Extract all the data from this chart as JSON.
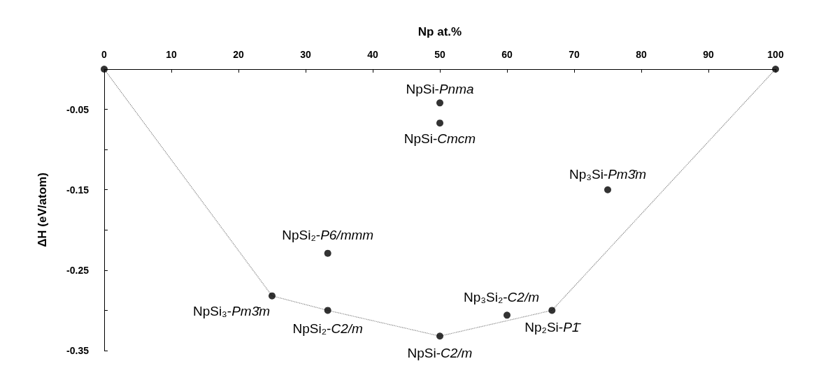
{
  "chart_data": {
    "type": "scatter",
    "xlabel": "Np at.%",
    "ylabel": "ΔH (eV/atom)",
    "xlim": [
      0,
      100
    ],
    "xticks": [
      0,
      10,
      20,
      30,
      40,
      50,
      60,
      70,
      80,
      90,
      100
    ],
    "ylim": [
      -0.35,
      0
    ],
    "yticks": [
      -0.35,
      {
        "value": -0.3,
        "label": null
      },
      -0.25,
      {
        "value": -0.2,
        "label": null
      },
      -0.15,
      {
        "value": -0.1,
        "label": null
      },
      -0.05
    ],
    "marker": "circle",
    "series": [
      {
        "color": "#000000",
        "x": [
          0,
          100,
          50,
          50,
          75,
          33.3,
          25,
          33.3,
          50,
          60,
          66.7
        ],
        "values": [
          0,
          0,
          -0.042,
          -0.067,
          -0.15,
          -0.229,
          -0.282,
          -0.3,
          -0.332,
          -0.306,
          -0.3
        ]
      },
      {
        "type": "line",
        "line_style": "dotted",
        "marker": "none",
        "color": "#808080",
        "x": [
          0,
          25,
          33.3,
          50,
          66.7,
          100
        ],
        "values": [
          0,
          -0.282,
          -0.3,
          -0.332,
          -0.3,
          0
        ]
      }
    ],
    "annotations": [
      {
        "text": "NpSi-Pnma",
        "x": 50,
        "y": -0.042
      },
      {
        "text": "NpSi-Cmcm",
        "x": 50,
        "y": -0.067
      },
      {
        "text": "Np₃Si-Pm3̄m",
        "x": 75,
        "y": -0.15
      },
      {
        "text": "NpSi₂-P6/mmm",
        "x": 33.3,
        "y": -0.229
      },
      {
        "text": "NpSi₃-Pm3̄m",
        "x": 25,
        "y": -0.282
      },
      {
        "text": "NpSi₂-C2/m",
        "x": 33.3,
        "y": -0.3
      },
      {
        "text": "NpSi-C2/m",
        "x": 50,
        "y": -0.332
      },
      {
        "text": "Np₃Si₂-C2/m",
        "x": 60,
        "y": -0.306
      },
      {
        "text": "Np₂Si-P1̄",
        "x": 66.7,
        "y": -0.3
      }
    ]
  }
}
